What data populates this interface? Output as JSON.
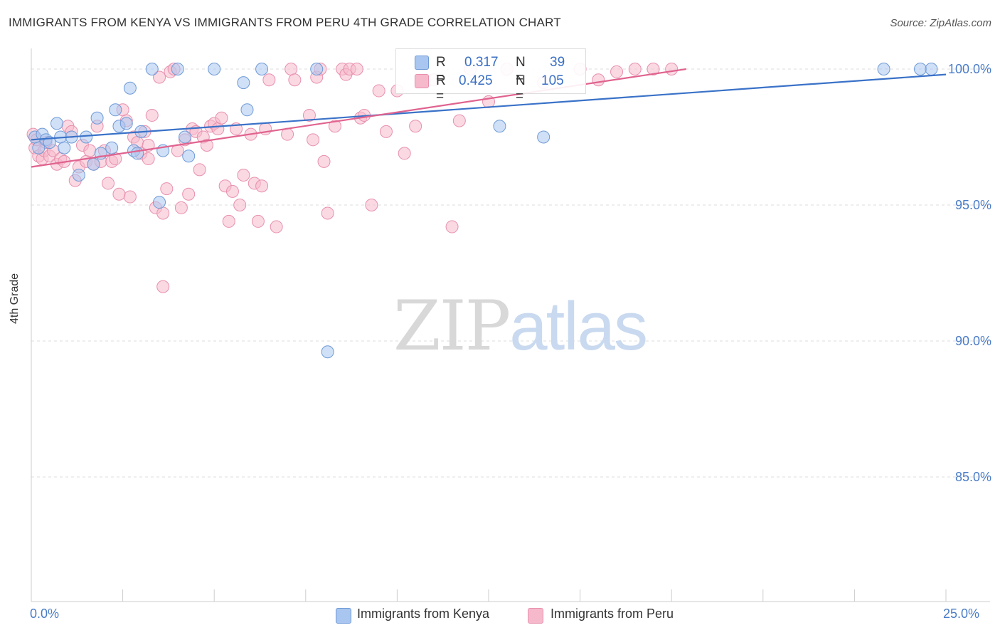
{
  "header": {
    "title": "IMMIGRANTS FROM KENYA VS IMMIGRANTS FROM PERU 4TH GRADE CORRELATION CHART",
    "source": "Source: ZipAtlas.com"
  },
  "watermark": {
    "part1": "ZIP",
    "part2": "atlas"
  },
  "legend": {
    "kenya": {
      "r_label": "R =",
      "r_value": "0.317",
      "n_label": "N =",
      "n_value": "39"
    },
    "peru": {
      "r_label": "R =",
      "r_value": "0.425",
      "n_label": "N =",
      "n_value": "105"
    }
  },
  "axes": {
    "ylabel": "4th Grade",
    "yticks": [
      "100.0%",
      "95.0%",
      "90.0%",
      "85.0%"
    ],
    "xmin_label": "0.0%",
    "xmax_label": "25.0%"
  },
  "colors": {
    "kenya_fill": "#a9c6f0",
    "kenya_stroke": "#6f9ad6",
    "kenya_line": "#3a72c8",
    "peru_fill": "#f6b9cc",
    "peru_stroke": "#e890ad",
    "peru_line": "#e0638f",
    "grid": "#dddddd",
    "tick_text": "#4a7cc7"
  },
  "chart_data": {
    "type": "scatter",
    "title": "IMMIGRANTS FROM KENYA VS IMMIGRANTS FROM PERU 4TH GRADE CORRELATION CHART",
    "xlabel": "",
    "ylabel": "4th Grade",
    "xlim": [
      0,
      25
    ],
    "ylim": [
      80.5,
      100.8
    ],
    "yticks": [
      85,
      90,
      95,
      100
    ],
    "grid": "horizontal dashed",
    "legend_position": "bottom",
    "series": [
      {
        "name": "Immigrants from Kenya",
        "r": 0.317,
        "n": 39,
        "trend": {
          "x": [
            0,
            25
          ],
          "y": [
            97.4,
            99.8
          ]
        },
        "points": [
          [
            0.1,
            97.5
          ],
          [
            0.2,
            97.1
          ],
          [
            0.3,
            97.6
          ],
          [
            0.4,
            97.4
          ],
          [
            0.5,
            97.3
          ],
          [
            0.7,
            98.0
          ],
          [
            0.8,
            97.5
          ],
          [
            0.9,
            97.1
          ],
          [
            1.1,
            97.5
          ],
          [
            1.3,
            96.1
          ],
          [
            1.5,
            97.5
          ],
          [
            1.7,
            96.5
          ],
          [
            1.8,
            98.2
          ],
          [
            1.9,
            96.9
          ],
          [
            2.2,
            97.1
          ],
          [
            2.3,
            98.5
          ],
          [
            2.4,
            97.9
          ],
          [
            2.6,
            98.0
          ],
          [
            2.7,
            99.3
          ],
          [
            2.8,
            97.0
          ],
          [
            2.9,
            96.9
          ],
          [
            3.0,
            97.7
          ],
          [
            3.3,
            100.0
          ],
          [
            3.5,
            95.1
          ],
          [
            3.6,
            97.0
          ],
          [
            4.0,
            100.0
          ],
          [
            4.3,
            96.8
          ],
          [
            4.2,
            97.5
          ],
          [
            5.0,
            100.0
          ],
          [
            5.8,
            99.5
          ],
          [
            5.9,
            98.5
          ],
          [
            6.3,
            100.0
          ],
          [
            7.8,
            100.0
          ],
          [
            8.1,
            89.6
          ],
          [
            12.8,
            97.9
          ],
          [
            14.0,
            97.5
          ],
          [
            23.3,
            100.0
          ],
          [
            24.3,
            100.0
          ],
          [
            24.6,
            100.0
          ]
        ]
      },
      {
        "name": "Immigrants from Peru",
        "r": 0.425,
        "n": 105,
        "trend": {
          "x": [
            0,
            17.9
          ],
          "y": [
            96.4,
            100.0
          ]
        },
        "points": [
          [
            0.05,
            97.6
          ],
          [
            0.1,
            97.1
          ],
          [
            0.15,
            97.4
          ],
          [
            0.2,
            96.8
          ],
          [
            0.3,
            96.7
          ],
          [
            0.35,
            97.0
          ],
          [
            0.4,
            97.3
          ],
          [
            0.5,
            96.8
          ],
          [
            0.6,
            97.0
          ],
          [
            0.7,
            96.5
          ],
          [
            0.8,
            96.7
          ],
          [
            0.9,
            96.6
          ],
          [
            1.0,
            97.9
          ],
          [
            1.1,
            97.7
          ],
          [
            1.2,
            95.9
          ],
          [
            1.3,
            96.4
          ],
          [
            1.4,
            97.2
          ],
          [
            1.5,
            96.6
          ],
          [
            1.6,
            97.0
          ],
          [
            1.7,
            96.5
          ],
          [
            1.8,
            97.9
          ],
          [
            1.9,
            96.6
          ],
          [
            2.0,
            97.0
          ],
          [
            2.1,
            95.8
          ],
          [
            2.2,
            96.6
          ],
          [
            2.3,
            96.7
          ],
          [
            2.4,
            95.4
          ],
          [
            2.5,
            98.5
          ],
          [
            2.6,
            98.1
          ],
          [
            2.7,
            95.3
          ],
          [
            2.8,
            97.5
          ],
          [
            2.9,
            97.3
          ],
          [
            3.0,
            96.9
          ],
          [
            3.1,
            97.7
          ],
          [
            3.2,
            97.2
          ],
          [
            3.3,
            98.3
          ],
          [
            3.2,
            96.7
          ],
          [
            3.4,
            94.9
          ],
          [
            3.5,
            99.7
          ],
          [
            3.6,
            94.7
          ],
          [
            3.7,
            95.6
          ],
          [
            3.8,
            99.9
          ],
          [
            3.9,
            100.0
          ],
          [
            3.6,
            92.0
          ],
          [
            4.0,
            97.0
          ],
          [
            4.1,
            94.9
          ],
          [
            4.2,
            97.4
          ],
          [
            4.3,
            95.4
          ],
          [
            4.4,
            97.8
          ],
          [
            4.5,
            97.7
          ],
          [
            4.6,
            96.3
          ],
          [
            4.7,
            97.5
          ],
          [
            4.8,
            97.2
          ],
          [
            4.9,
            97.9
          ],
          [
            5.0,
            98.0
          ],
          [
            5.1,
            97.8
          ],
          [
            5.2,
            98.2
          ],
          [
            5.3,
            95.7
          ],
          [
            5.4,
            94.4
          ],
          [
            5.5,
            95.5
          ],
          [
            5.6,
            97.8
          ],
          [
            5.7,
            95.0
          ],
          [
            5.8,
            96.1
          ],
          [
            6.0,
            97.6
          ],
          [
            6.1,
            95.8
          ],
          [
            6.2,
            94.4
          ],
          [
            6.3,
            95.7
          ],
          [
            6.4,
            97.8
          ],
          [
            6.5,
            99.6
          ],
          [
            6.7,
            94.2
          ],
          [
            7.0,
            97.6
          ],
          [
            7.1,
            100.0
          ],
          [
            7.2,
            99.6
          ],
          [
            7.6,
            98.3
          ],
          [
            7.7,
            97.4
          ],
          [
            7.8,
            99.7
          ],
          [
            7.9,
            100.0
          ],
          [
            8.0,
            96.6
          ],
          [
            8.1,
            94.7
          ],
          [
            8.3,
            97.9
          ],
          [
            8.5,
            100.0
          ],
          [
            8.6,
            99.8
          ],
          [
            8.7,
            100.0
          ],
          [
            8.9,
            100.0
          ],
          [
            9.0,
            98.2
          ],
          [
            9.1,
            98.3
          ],
          [
            9.3,
            95.0
          ],
          [
            9.5,
            99.2
          ],
          [
            9.7,
            97.7
          ],
          [
            10.0,
            99.2
          ],
          [
            10.2,
            96.9
          ],
          [
            10.5,
            97.9
          ],
          [
            11.0,
            99.6
          ],
          [
            11.5,
            94.2
          ],
          [
            11.7,
            98.1
          ],
          [
            12.0,
            100.0
          ],
          [
            12.5,
            98.8
          ],
          [
            13.0,
            100.0
          ],
          [
            14.0,
            99.5
          ],
          [
            15.0,
            100.0
          ],
          [
            15.5,
            99.6
          ],
          [
            16.0,
            99.9
          ],
          [
            16.5,
            100.0
          ],
          [
            17.0,
            100.0
          ],
          [
            17.5,
            100.0
          ]
        ]
      }
    ]
  },
  "bottom_legend": {
    "kenya_label": "Immigrants from Kenya",
    "peru_label": "Immigrants from Peru"
  }
}
